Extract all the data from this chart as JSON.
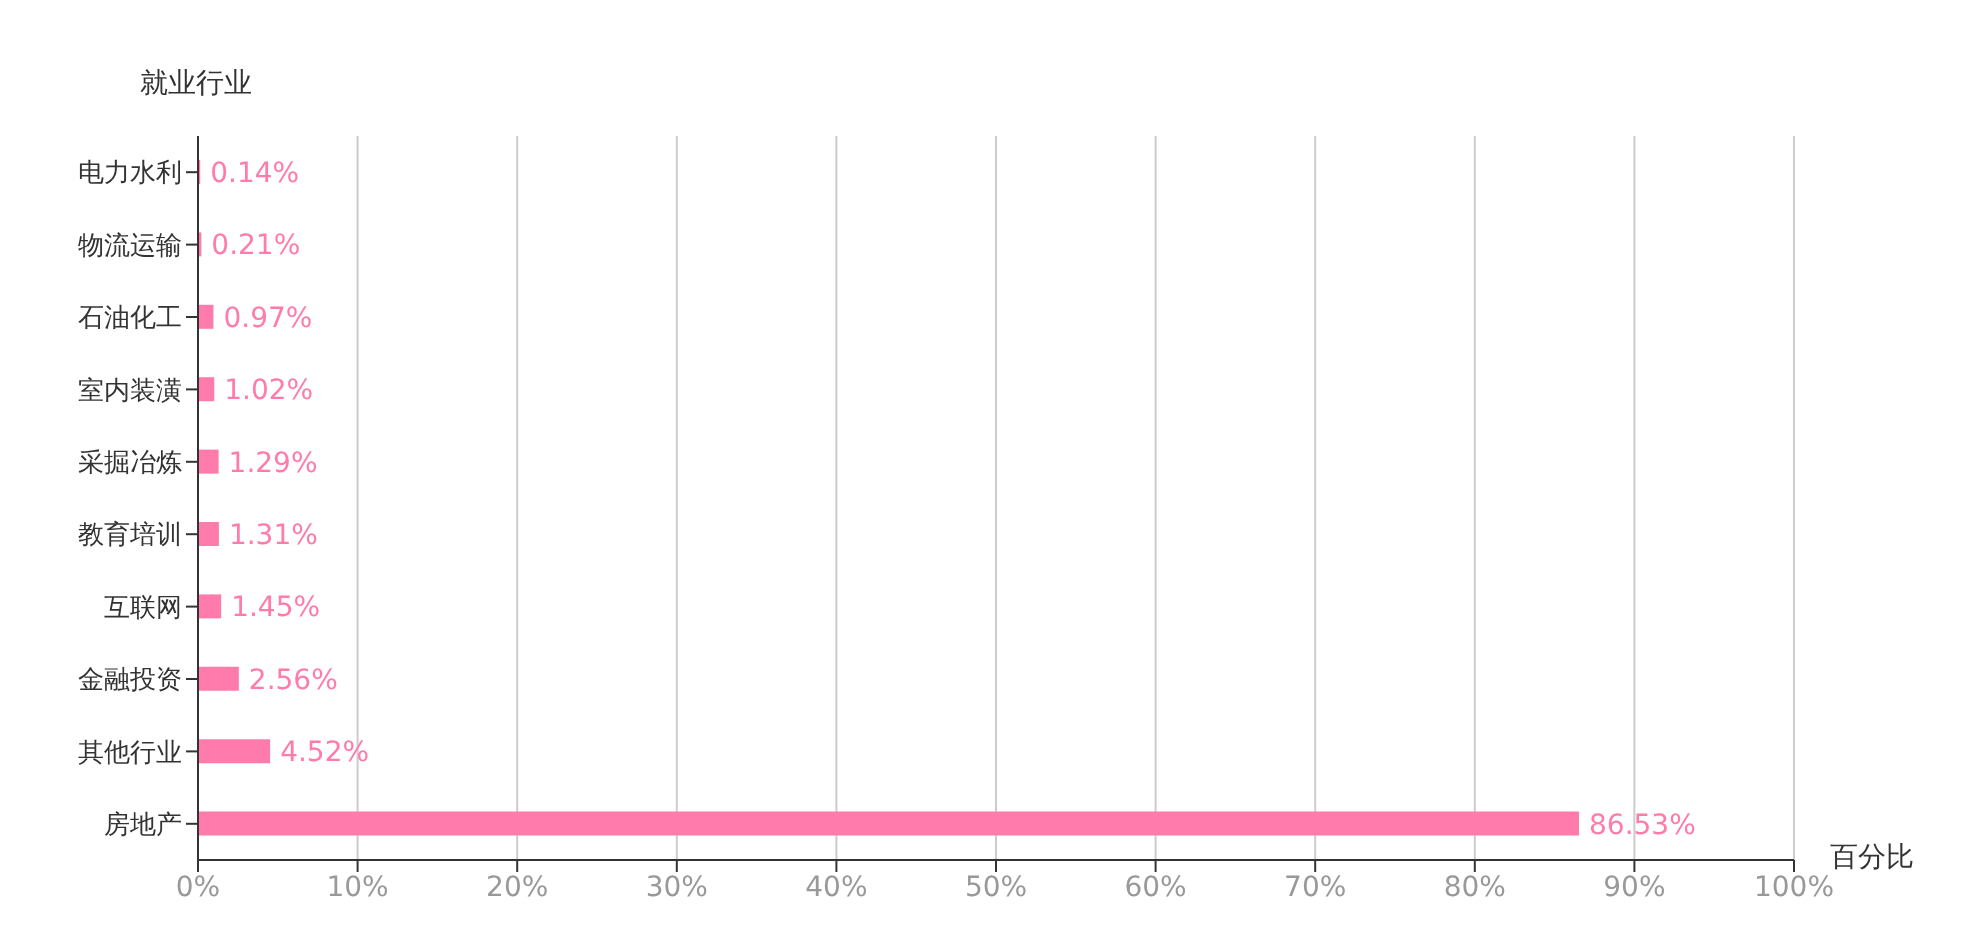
{
  "chart_data": {
    "type": "bar",
    "orientation": "horizontal",
    "ylabel": "就业行业",
    "xlabel": "百分比",
    "categories": [
      "电力水利",
      "物流运输",
      "石油化工",
      "室内装潢",
      "采掘冶炼",
      "教育培训",
      "互联网",
      "金融投资",
      "其他行业",
      "房地产"
    ],
    "values": [
      0.14,
      0.21,
      0.97,
      1.02,
      1.29,
      1.31,
      1.45,
      2.56,
      4.52,
      86.53
    ],
    "value_labels": [
      "0.14%",
      "0.21%",
      "0.97%",
      "1.02%",
      "1.29%",
      "1.31%",
      "1.45%",
      "2.56%",
      "4.52%",
      "86.53%"
    ],
    "color": "#ff7bac",
    "xlim": [
      0,
      100
    ],
    "xticks": [
      {
        "value": 0,
        "label": "0%"
      },
      {
        "value": 10,
        "label": "10%"
      },
      {
        "value": 20,
        "label": "20%"
      },
      {
        "value": 30,
        "label": "30%"
      },
      {
        "value": 40,
        "label": "40%"
      },
      {
        "value": 50,
        "label": "50%"
      },
      {
        "value": 60,
        "label": "60%"
      },
      {
        "value": 70,
        "label": "70%"
      },
      {
        "value": 80,
        "label": "80%"
      },
      {
        "value": 90,
        "label": "90%"
      },
      {
        "value": 100,
        "label": "100%"
      }
    ],
    "grid": "x",
    "legend": false
  }
}
